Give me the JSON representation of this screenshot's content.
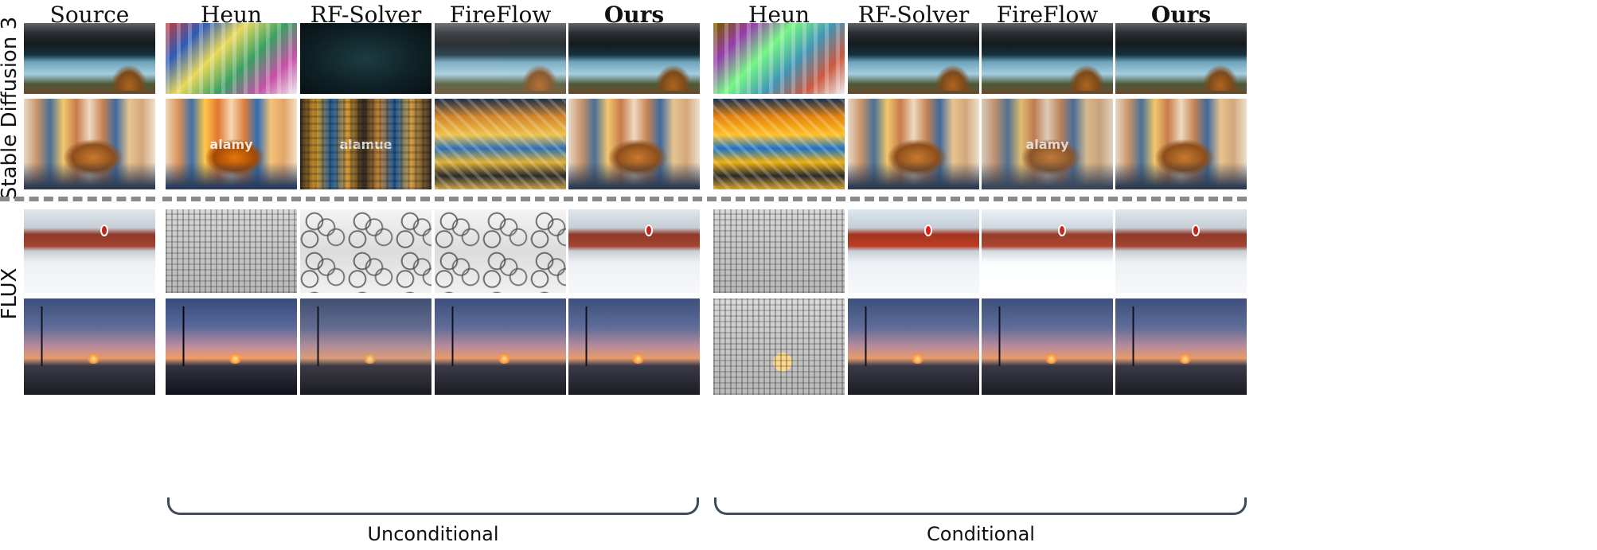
{
  "columns": {
    "source": "Source",
    "uncond": [
      "Heun",
      "RF-Solver",
      "FireFlow",
      "Ours"
    ],
    "cond": [
      "Heun",
      "RF-Solver",
      "FireFlow",
      "Ours"
    ]
  },
  "rows": {
    "top_label": "Stable Diffusion 3",
    "bottom_label": "FLUX"
  },
  "groups": {
    "unconditional": "Unconditional",
    "conditional": "Conditional"
  },
  "watermark": {
    "band": "alamy",
    "band_rf": "alamue"
  }
}
